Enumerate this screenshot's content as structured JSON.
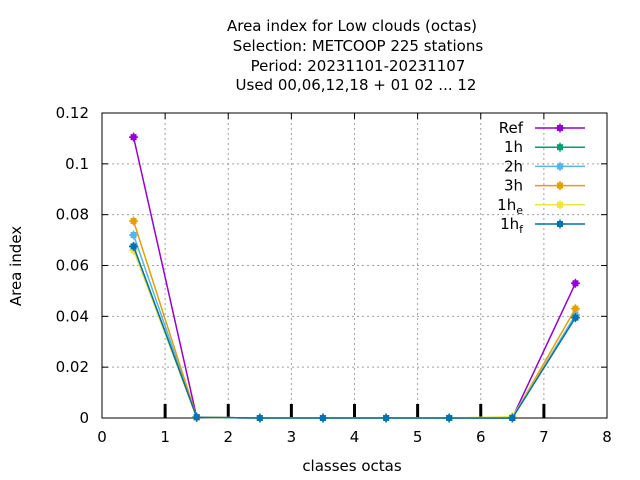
{
  "chart_data": {
    "type": "line",
    "title_lines": [
      "Area index  for Low clouds (octas)",
      "Selection: METCOOP    225 stations",
      "Period: 20231101-20231107",
      "Used  00,06,12,18 + 01 02 ... 12"
    ],
    "xlabel": "classes octas",
    "ylabel": "Area index",
    "xlim": [
      0,
      8
    ],
    "ylim": [
      0,
      0.12
    ],
    "xticks": [
      0,
      1,
      2,
      3,
      4,
      5,
      6,
      7,
      8
    ],
    "xtick_labels": [
      "0",
      "1",
      "2",
      "3",
      "4",
      "5",
      "6",
      "7",
      "8"
    ],
    "yticks": [
      0,
      0.02,
      0.04,
      0.06,
      0.08,
      0.1,
      0.12
    ],
    "ytick_labels": [
      "0",
      "0.02",
      "0.04",
      "0.06",
      "0.08",
      "0.1",
      "0.12"
    ],
    "grid": true,
    "legend_position": "top-right",
    "x": [
      0.5,
      1.5,
      2.5,
      3.5,
      4.5,
      5.5,
      6.5,
      7.5
    ],
    "series": [
      {
        "name": "Ref",
        "sub": "",
        "color": "#9400d3",
        "values": [
          0.1105,
          0.0003,
          0.0,
          0.0,
          0.0,
          0.0,
          0.0,
          0.053
        ]
      },
      {
        "name": "1h",
        "sub": "",
        "color": "#009e73",
        "values": [
          0.0675,
          0.0003,
          0.0,
          0.0,
          0.0,
          0.0,
          0.0,
          0.0395
        ]
      },
      {
        "name": "2h",
        "sub": "",
        "color": "#56b4e9",
        "values": [
          0.072,
          0.0003,
          0.0,
          0.0,
          0.0,
          0.0,
          0.0,
          0.0405
        ]
      },
      {
        "name": "3h",
        "sub": "",
        "color": "#e69f00",
        "values": [
          0.0775,
          0.0003,
          0.0,
          0.0,
          0.0,
          0.0,
          0.0,
          0.043
        ]
      },
      {
        "name": "1h",
        "sub": "e",
        "color": "#f0e442",
        "values": [
          0.066,
          0.0003,
          0.0,
          0.0,
          0.0,
          0.0,
          0.0005,
          0.0395
        ]
      },
      {
        "name": "1h",
        "sub": "f",
        "color": "#0072b2",
        "values": [
          0.0675,
          0.0003,
          0.0,
          0.0,
          0.0,
          0.0,
          0.0,
          0.0395
        ]
      }
    ],
    "bar_ticks_x": [
      1,
      2,
      3,
      4,
      5,
      6,
      7
    ]
  }
}
